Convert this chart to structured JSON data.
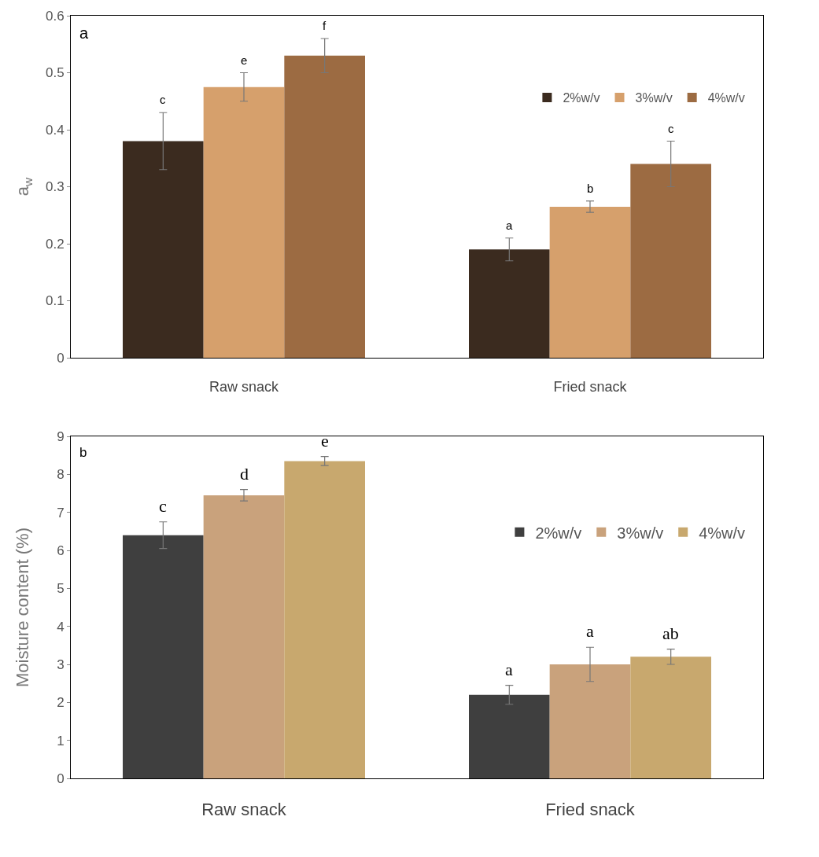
{
  "chart_data": [
    {
      "type": "bar",
      "ylabel": "a$_{w}$",
      "categories": [
        "Raw snack",
        "Fried snack"
      ],
      "ylim": [
        0,
        0.6
      ],
      "yticks": [
        0,
        0.1,
        0.2,
        0.3,
        0.4,
        0.5,
        0.6
      ],
      "grid": false,
      "legend": "top right",
      "annotations": [
        "a"
      ],
      "series": [
        {
          "name": "2%w/v",
          "color": "#3b2b1f",
          "values": [
            0.38,
            0.19
          ],
          "errors": [
            0.05,
            0.02
          ],
          "value_labels": [
            "c",
            "a"
          ]
        },
        {
          "name": "3%w/v",
          "color": "#d6a06c",
          "values": [
            0.475,
            0.265
          ],
          "errors": [
            0.025,
            0.01
          ],
          "value_labels": [
            "e",
            "b"
          ]
        },
        {
          "name": "4%w/v",
          "color": "#9c6b42",
          "values": [
            0.53,
            0.34
          ],
          "errors": [
            0.03,
            0.04
          ],
          "value_labels": [
            "f",
            "c"
          ]
        }
      ]
    },
    {
      "type": "bar",
      "ylabel": "Moisture content (%)",
      "categories": [
        "Raw snack",
        "Fried snack"
      ],
      "ylim": [
        0,
        9
      ],
      "yticks": [
        0,
        1,
        2,
        3,
        4,
        5,
        6,
        7,
        8,
        9
      ],
      "grid": false,
      "legend": "right",
      "annotations": [
        "b"
      ],
      "series": [
        {
          "name": "2%w/v",
          "color": "#3f3f3f",
          "values": [
            6.4,
            2.2
          ],
          "errors": [
            0.35,
            0.25
          ],
          "value_labels": [
            "c",
            "a"
          ]
        },
        {
          "name": "3%w/v",
          "color": "#c9a27c",
          "values": [
            7.45,
            3.0
          ],
          "errors": [
            0.15,
            0.45
          ],
          "value_labels": [
            "d",
            "a"
          ]
        },
        {
          "name": "4%w/v",
          "color": "#c8a86e",
          "values": [
            8.35,
            3.2
          ],
          "errors": [
            0.12,
            0.2
          ],
          "value_labels": [
            "e",
            "ab"
          ]
        }
      ]
    }
  ]
}
